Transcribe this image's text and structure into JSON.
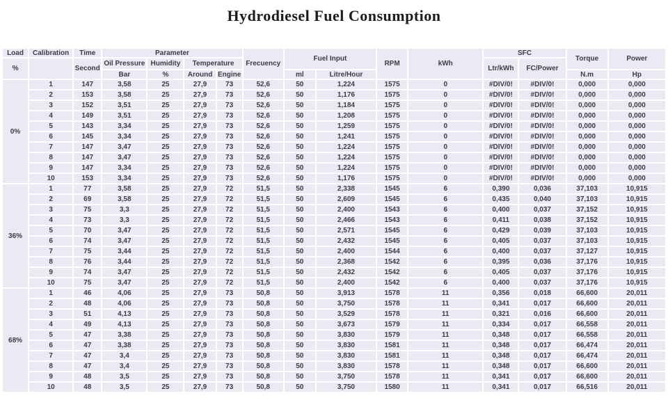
{
  "title": "Hydrodiesel Fuel Consumption",
  "colors": {
    "cell_background": "#e9eaf4",
    "gridline": "#ffffff",
    "text": "#3c3c44",
    "title_text": "#1d1d1f"
  },
  "header": {
    "load": "Load",
    "load_unit": "%",
    "calibration": "Calibration",
    "time": "Time",
    "time_unit": "Second",
    "parameter": "Parameter",
    "oil_pressure": "Oil Pressure",
    "oil_pressure_unit": "Bar",
    "humidity": "Humidity",
    "humidity_unit": "%",
    "temperature": "Temperature",
    "temp_around": "Around",
    "temp_engine": "Engine",
    "frecuency": "Frecuency",
    "fuel_input": "Fuel Input",
    "fuel_ml": "ml",
    "fuel_litre_hour": "Litre/Hour",
    "rpm": "RPM",
    "kwh": "kWh",
    "sfc": "SFC",
    "sfc_ltr_kwh": "Ltr/kWh",
    "sfc_fc_power": "FC/Power",
    "torque": "Torque",
    "torque_unit": "N.m",
    "power": "Power",
    "power_unit": "Hp"
  },
  "row_columns": [
    "Calibration",
    "Time Second",
    "Oil Pressure Bar",
    "Humidity %",
    "Temperature Around",
    "Temperature Engine",
    "Frecuency",
    "Fuel Input ml",
    "Fuel Input Litre/Hour",
    "RPM",
    "kWh",
    "SFC Ltr/kWh",
    "SFC FC/Power",
    "Torque N.m",
    "Power Hp"
  ],
  "groups": [
    {
      "load": "0%",
      "rows": [
        [
          "1",
          "147",
          "3,58",
          "25",
          "27,9",
          "73",
          "52,6",
          "50",
          "1,224",
          "1575",
          "0",
          "#DIV/0!",
          "#DIV/0!",
          "0,000",
          "0,000"
        ],
        [
          "2",
          "153",
          "3,58",
          "25",
          "27,9",
          "73",
          "52,6",
          "50",
          "1,176",
          "1575",
          "0",
          "#DIV/0!",
          "#DIV/0!",
          "0,000",
          "0,000"
        ],
        [
          "3",
          "152",
          "3,51",
          "25",
          "27,9",
          "73",
          "52,6",
          "50",
          "1,184",
          "1575",
          "0",
          "#DIV/0!",
          "#DIV/0!",
          "0,000",
          "0,000"
        ],
        [
          "4",
          "149",
          "3,51",
          "25",
          "27,9",
          "73",
          "52,6",
          "50",
          "1,208",
          "1575",
          "0",
          "#DIV/0!",
          "#DIV/0!",
          "0,000",
          "0,000"
        ],
        [
          "5",
          "143",
          "3,34",
          "25",
          "27,9",
          "73",
          "52,6",
          "50",
          "1,259",
          "1575",
          "0",
          "#DIV/0!",
          "#DIV/0!",
          "0,000",
          "0,000"
        ],
        [
          "6",
          "145",
          "3,34",
          "25",
          "27,9",
          "73",
          "52,6",
          "50",
          "1,241",
          "1575",
          "0",
          "#DIV/0!",
          "#DIV/0!",
          "0,000",
          "0,000"
        ],
        [
          "7",
          "147",
          "3,47",
          "25",
          "27,9",
          "73",
          "52,6",
          "50",
          "1,224",
          "1575",
          "0",
          "#DIV/0!",
          "#DIV/0!",
          "0,000",
          "0,000"
        ],
        [
          "8",
          "147",
          "3,47",
          "25",
          "27,9",
          "73",
          "52,6",
          "50",
          "1,224",
          "1575",
          "0",
          "#DIV/0!",
          "#DIV/0!",
          "0,000",
          "0,000"
        ],
        [
          "9",
          "147",
          "3,34",
          "25",
          "27,9",
          "73",
          "52,6",
          "50",
          "1,224",
          "1575",
          "0",
          "#DIV/0!",
          "#DIV/0!",
          "0,000",
          "0,000"
        ],
        [
          "10",
          "153",
          "3,34",
          "25",
          "27,9",
          "73",
          "52,6",
          "50",
          "1,176",
          "1575",
          "0",
          "#DIV/0!",
          "#DIV/0!",
          "0,000",
          "0,000"
        ]
      ]
    },
    {
      "load": "36%",
      "rows": [
        [
          "1",
          "77",
          "3,58",
          "25",
          "27,9",
          "72",
          "51,5",
          "50",
          "2,338",
          "1545",
          "6",
          "0,390",
          "0,036",
          "37,103",
          "10,915"
        ],
        [
          "2",
          "69",
          "3,58",
          "25",
          "27,9",
          "72",
          "51,5",
          "50",
          "2,609",
          "1545",
          "6",
          "0,435",
          "0,040",
          "37,103",
          "10,915"
        ],
        [
          "3",
          "75",
          "3,3",
          "25",
          "27,9",
          "72",
          "51,5",
          "50",
          "2,400",
          "1543",
          "6",
          "0,400",
          "0,037",
          "37,152",
          "10,915"
        ],
        [
          "4",
          "73",
          "3,3",
          "25",
          "27,9",
          "72",
          "51,5",
          "50",
          "2,466",
          "1543",
          "6",
          "0,411",
          "0,038",
          "37,152",
          "10,915"
        ],
        [
          "5",
          "70",
          "3,47",
          "25",
          "27,9",
          "72",
          "51,5",
          "50",
          "2,571",
          "1545",
          "6",
          "0,429",
          "0,039",
          "37,103",
          "10,915"
        ],
        [
          "6",
          "74",
          "3,47",
          "25",
          "27,9",
          "72",
          "51,5",
          "50",
          "2,432",
          "1545",
          "6",
          "0,405",
          "0,037",
          "37,103",
          "10,915"
        ],
        [
          "7",
          "75",
          "3,44",
          "25",
          "27,9",
          "72",
          "51,5",
          "50",
          "2,400",
          "1544",
          "6",
          "0,400",
          "0,037",
          "37,127",
          "10,915"
        ],
        [
          "8",
          "76",
          "3,44",
          "25",
          "27,9",
          "72",
          "51,5",
          "50",
          "2,368",
          "1542",
          "6",
          "0,395",
          "0,036",
          "37,176",
          "10,915"
        ],
        [
          "9",
          "74",
          "3,47",
          "25",
          "27,9",
          "72",
          "51,5",
          "50",
          "2,432",
          "1542",
          "6",
          "0,405",
          "0,037",
          "37,176",
          "10,915"
        ],
        [
          "10",
          "75",
          "3,47",
          "25",
          "27,9",
          "72",
          "51,5",
          "50",
          "2,400",
          "1542",
          "6",
          "0,400",
          "0,037",
          "37,176",
          "10,915"
        ]
      ]
    },
    {
      "load": "68%",
      "rows": [
        [
          "1",
          "46",
          "4,06",
          "25",
          "27,9",
          "73",
          "50,8",
          "50",
          "3,913",
          "1578",
          "11",
          "0,356",
          "0,018",
          "66,600",
          "20,011"
        ],
        [
          "2",
          "48",
          "4,06",
          "25",
          "27,9",
          "73",
          "50,8",
          "50",
          "3,750",
          "1578",
          "11",
          "0,341",
          "0,017",
          "66,600",
          "20,011"
        ],
        [
          "3",
          "51",
          "4,13",
          "25",
          "27,9",
          "73",
          "50,8",
          "50",
          "3,529",
          "1578",
          "11",
          "0,321",
          "0,016",
          "66,600",
          "20,011"
        ],
        [
          "4",
          "49",
          "4,13",
          "25",
          "27,9",
          "73",
          "50,8",
          "50",
          "3,673",
          "1579",
          "11",
          "0,334",
          "0,017",
          "66,558",
          "20,011"
        ],
        [
          "5",
          "47",
          "3,38",
          "25",
          "27,9",
          "73",
          "50,8",
          "50",
          "3,830",
          "1579",
          "11",
          "0,348",
          "0,017",
          "66,558",
          "20,011"
        ],
        [
          "6",
          "47",
          "3,38",
          "25",
          "27,9",
          "73",
          "50,8",
          "50",
          "3,830",
          "1581",
          "11",
          "0,348",
          "0,017",
          "66,474",
          "20,011"
        ],
        [
          "7",
          "47",
          "3,4",
          "25",
          "27,9",
          "73",
          "50,8",
          "50",
          "3,830",
          "1581",
          "11",
          "0,348",
          "0,017",
          "66,474",
          "20,011"
        ],
        [
          "8",
          "47",
          "3,4",
          "25",
          "27,9",
          "73",
          "50,8",
          "50",
          "3,830",
          "1578",
          "11",
          "0,348",
          "0,017",
          "66,600",
          "20,011"
        ],
        [
          "9",
          "48",
          "3,5",
          "25",
          "27,9",
          "73",
          "50,8",
          "50",
          "3,750",
          "1578",
          "11",
          "0,341",
          "0,017",
          "66,600",
          "20,011"
        ],
        [
          "10",
          "48",
          "3,5",
          "25",
          "27,9",
          "73",
          "50,8",
          "50",
          "3,750",
          "1580",
          "11",
          "0,341",
          "0,017",
          "66,516",
          "20,011"
        ]
      ]
    }
  ]
}
